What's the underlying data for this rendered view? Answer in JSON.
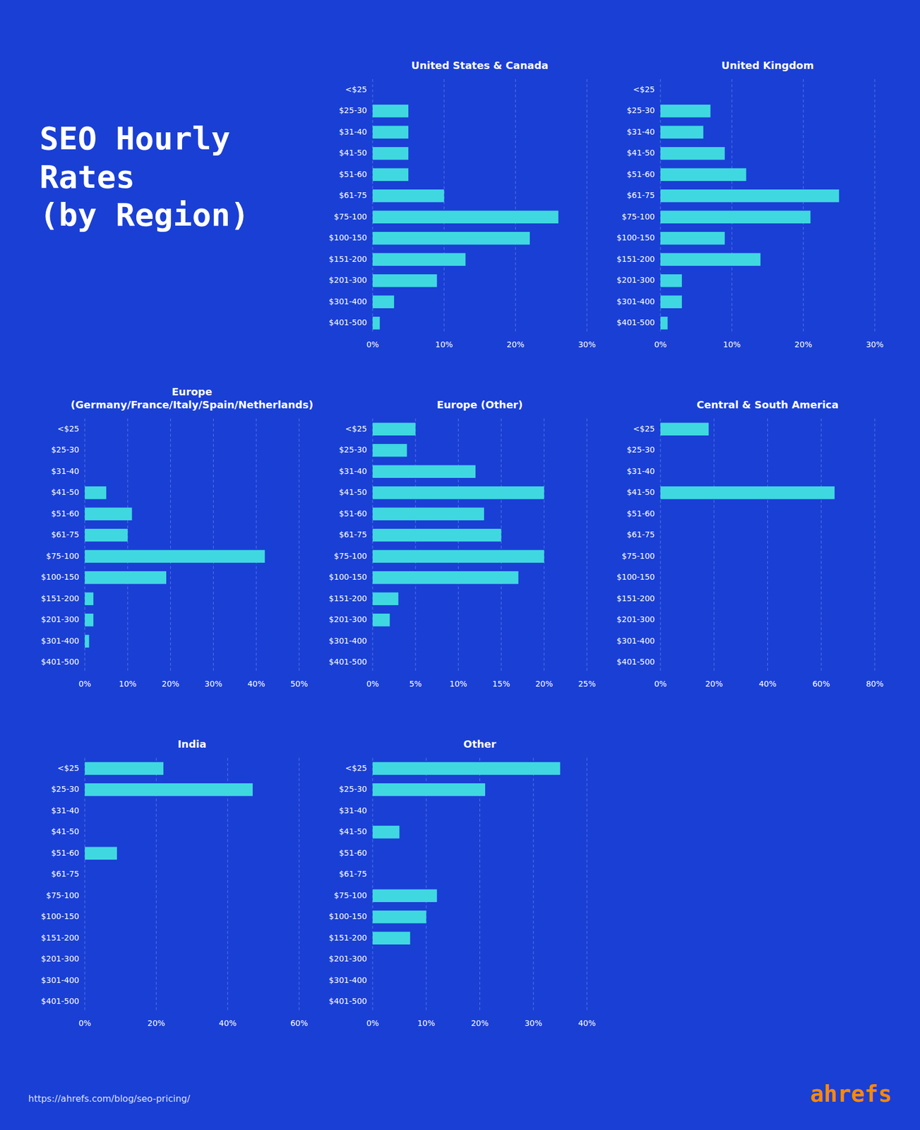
{
  "title": "SEO Hourly\nRates\n(by Region)",
  "annotations": [
    "https://ahrefs.com/blog/seo-pricing/",
    "ahrefs"
  ],
  "chart_data": [
    {
      "type": "bar",
      "orientation": "horizontal",
      "title": "United States & Canada",
      "categories": [
        "<$25",
        "$25-30",
        "$31-40",
        "$41-50",
        "$51-60",
        "$61-75",
        "$75-100",
        "$100-150",
        "$151-200",
        "$201-300",
        "$301-400",
        "$401-500"
      ],
      "values": [
        0,
        5,
        5,
        5,
        5,
        10,
        26,
        22,
        13,
        9,
        3,
        1
      ],
      "color": "#40d8e0",
      "xlim": [
        0,
        30
      ],
      "xticks": [
        {
          "value": 0,
          "label": "0%"
        },
        {
          "value": 10,
          "label": "10%"
        },
        {
          "value": 20,
          "label": "20%"
        },
        {
          "value": 30,
          "label": "30%"
        }
      ],
      "grid": true
    },
    {
      "type": "bar",
      "orientation": "horizontal",
      "title": "United Kingdom",
      "categories": [
        "<$25",
        "$25-30",
        "$31-40",
        "$41-50",
        "$51-60",
        "$61-75",
        "$75-100",
        "$100-150",
        "$151-200",
        "$201-300",
        "$301-400",
        "$401-500"
      ],
      "values": [
        0,
        7,
        6,
        9,
        12,
        25,
        21,
        9,
        14,
        3,
        3,
        1
      ],
      "color": "#40d8e0",
      "xlim": [
        0,
        30
      ],
      "xticks": [
        {
          "value": 0,
          "label": "0%"
        },
        {
          "value": 10,
          "label": "10%"
        },
        {
          "value": 20,
          "label": "20%"
        },
        {
          "value": 30,
          "label": "30%"
        }
      ],
      "grid": true
    },
    {
      "type": "bar",
      "orientation": "horizontal",
      "title": "Europe\n(Germany/France/Italy/Spain/Netherlands)",
      "categories": [
        "<$25",
        "$25-30",
        "$31-40",
        "$41-50",
        "$51-60",
        "$61-75",
        "$75-100",
        "$100-150",
        "$151-200",
        "$201-300",
        "$301-400",
        "$401-500"
      ],
      "values": [
        0,
        0,
        0,
        5,
        11,
        10,
        42,
        19,
        2,
        2,
        1,
        0
      ],
      "color": "#40d8e0",
      "xlim": [
        0,
        50
      ],
      "xticks": [
        {
          "value": 0,
          "label": "0%"
        },
        {
          "value": 10,
          "label": "10%"
        },
        {
          "value": 20,
          "label": "20%"
        },
        {
          "value": 30,
          "label": "30%"
        },
        {
          "value": 40,
          "label": "40%"
        },
        {
          "value": 50,
          "label": "50%"
        }
      ],
      "grid": true
    },
    {
      "type": "bar",
      "orientation": "horizontal",
      "title": "Europe (Other)",
      "categories": [
        "<$25",
        "$25-30",
        "$31-40",
        "$41-50",
        "$51-60",
        "$61-75",
        "$75-100",
        "$100-150",
        "$151-200",
        "$201-300",
        "$301-400",
        "$401-500"
      ],
      "values": [
        5,
        4,
        12,
        20,
        13,
        15,
        20,
        17,
        3,
        2,
        0,
        0
      ],
      "color": "#40d8e0",
      "xlim": [
        0,
        25
      ],
      "xticks": [
        {
          "value": 0,
          "label": "0%"
        },
        {
          "value": 5,
          "label": "5%"
        },
        {
          "value": 10,
          "label": "10%"
        },
        {
          "value": 15,
          "label": "15%"
        },
        {
          "value": 20,
          "label": "20%"
        },
        {
          "value": 25,
          "label": "25%"
        }
      ],
      "grid": true
    },
    {
      "type": "bar",
      "orientation": "horizontal",
      "title": "Central & South America",
      "categories": [
        "<$25",
        "$25-30",
        "$31-40",
        "$41-50",
        "$51-60",
        "$61-75",
        "$75-100",
        "$100-150",
        "$151-200",
        "$201-300",
        "$301-400",
        "$401-500"
      ],
      "values": [
        18,
        0,
        0,
        65,
        0,
        0,
        0,
        0,
        0,
        0,
        0,
        0
      ],
      "color": "#40d8e0",
      "xlim": [
        0,
        80
      ],
      "xticks": [
        {
          "value": 0,
          "label": "0%"
        },
        {
          "value": 20,
          "label": "20%"
        },
        {
          "value": 40,
          "label": "40%"
        },
        {
          "value": 60,
          "label": "60%"
        },
        {
          "value": 80,
          "label": "80%"
        }
      ],
      "grid": true
    },
    {
      "type": "bar",
      "orientation": "horizontal",
      "title": "India",
      "categories": [
        "<$25",
        "$25-30",
        "$31-40",
        "$41-50",
        "$51-60",
        "$61-75",
        "$75-100",
        "$100-150",
        "$151-200",
        "$201-300",
        "$301-400",
        "$401-500"
      ],
      "values": [
        22,
        47,
        0,
        0,
        9,
        0,
        0,
        0,
        0,
        0,
        0,
        0
      ],
      "color": "#40d8e0",
      "xlim": [
        0,
        60
      ],
      "xticks": [
        {
          "value": 0,
          "label": "0%"
        },
        {
          "value": 20,
          "label": "20%"
        },
        {
          "value": 40,
          "label": "40%"
        },
        {
          "value": 60,
          "label": "60%"
        }
      ],
      "grid": true
    },
    {
      "type": "bar",
      "orientation": "horizontal",
      "title": "Other",
      "categories": [
        "<$25",
        "$25-30",
        "$31-40",
        "$41-50",
        "$51-60",
        "$61-75",
        "$75-100",
        "$100-150",
        "$151-200",
        "$201-300",
        "$301-400",
        "$401-500"
      ],
      "values": [
        35,
        21,
        0,
        5,
        0,
        0,
        12,
        10,
        7,
        0,
        0,
        0
      ],
      "color": "#40d8e0",
      "xlim": [
        0,
        40
      ],
      "xticks": [
        {
          "value": 0,
          "label": "0%"
        },
        {
          "value": 10,
          "label": "10%"
        },
        {
          "value": 20,
          "label": "20%"
        },
        {
          "value": 30,
          "label": "30%"
        },
        {
          "value": 40,
          "label": "40%"
        }
      ],
      "grid": true
    }
  ]
}
